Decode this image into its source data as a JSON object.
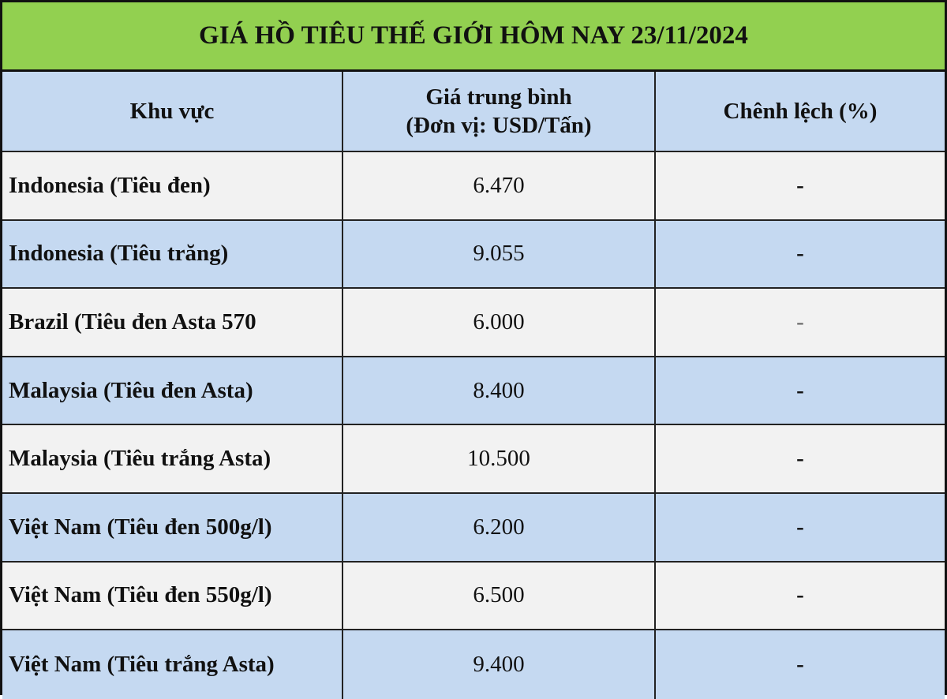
{
  "title": "GIÁ HỒ TIÊU THẾ GIỚI HÔM NAY 23/11/2024",
  "headers": {
    "region": "Khu vực",
    "price_line1": "Giá trung bình",
    "price_line2": "(Đơn vị: USD/Tấn)",
    "change": "Chênh lệch (%)"
  },
  "rows": [
    {
      "region": "Indonesia (Tiêu đen)",
      "price": "6.470",
      "change": "-"
    },
    {
      "region": "Indonesia (Tiêu trăng)",
      "price": "9.055",
      "change": "-"
    },
    {
      "region": "Brazil (Tiêu đen Asta 570",
      "price": "6.000",
      "change": "-"
    },
    {
      "region": "Malaysia (Tiêu đen Asta)",
      "price": "8.400",
      "change": "-"
    },
    {
      "region": "Malaysia (Tiêu trắng Asta)",
      "price": "10.500",
      "change": "-"
    },
    {
      "region": "Việt Nam (Tiêu đen 500g/l)",
      "price": "6.200",
      "change": "-"
    },
    {
      "region": "Việt Nam (Tiêu đen 550g/l)",
      "price": "6.500",
      "change": "-"
    },
    {
      "region": "Việt Nam (Tiêu trắng Asta)",
      "price": "9.400",
      "change": "-"
    }
  ],
  "colors": {
    "title_bg": "#92d050",
    "header_bg": "#c5d9f1",
    "row_light": "#f2f2f2",
    "row_blue": "#c5d9f1"
  }
}
